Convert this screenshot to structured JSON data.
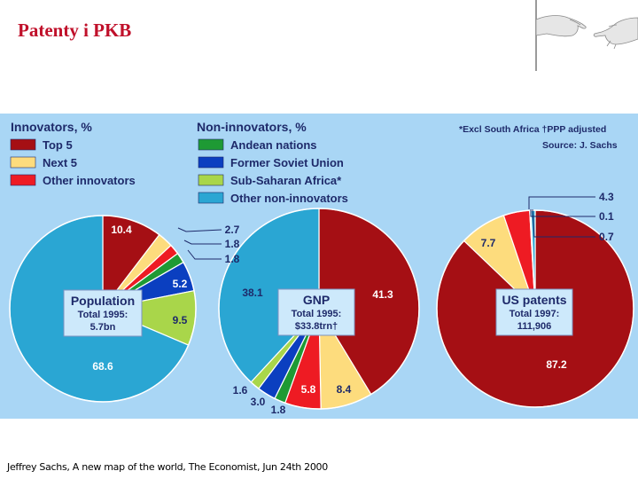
{
  "slide": {
    "title": "Patenty i PKB",
    "caption": "Jeffrey Sachs, A new map of the world, The Economist, Jun 24th 2000"
  },
  "colors": {
    "top5": "#a50f14",
    "next5": "#fddc7d",
    "other_innovators": "#ee1b23",
    "andean": "#1e9a34",
    "soviet": "#0b3fc0",
    "subsaharan": "#a9d64a",
    "other_non": "#2aa6d3",
    "background": "#a9d6f5",
    "text": "#1e2a6a"
  },
  "chart_data": {
    "type": "pie",
    "legend": {
      "innovators_title": "Innovators, %",
      "innovators": [
        {
          "key": "top5",
          "label": "Top 5"
        },
        {
          "key": "next5",
          "label": "Next 5"
        },
        {
          "key": "other_innovators",
          "label": "Other innovators"
        }
      ],
      "non_innovators_title": "Non-innovators, %",
      "non_innovators": [
        {
          "key": "andean",
          "label": "Andean nations"
        },
        {
          "key": "soviet",
          "label": "Former Soviet Union"
        },
        {
          "key": "subsaharan",
          "label": "Sub-Saharan Africa*"
        },
        {
          "key": "other_non",
          "label": "Other non-innovators"
        }
      ]
    },
    "notes": {
      "line1": "*Excl South Africa  †PPP adjusted",
      "line2": "Source: J. Sachs"
    },
    "pies": [
      {
        "name": "population",
        "box": {
          "title": "Population",
          "line1": "Total 1995:",
          "line2": "5.7bn"
        },
        "slices": [
          {
            "key": "top5",
            "value": 10.4,
            "label": "10.4"
          },
          {
            "key": "next5",
            "value": 2.7,
            "label": "2.7"
          },
          {
            "key": "other_innovators",
            "value": 1.8,
            "label": "1.8"
          },
          {
            "key": "andean",
            "value": 1.8,
            "label": "1.8"
          },
          {
            "key": "soviet",
            "value": 5.2,
            "label": "5.2"
          },
          {
            "key": "subsaharan",
            "value": 9.5,
            "label": "9.5"
          },
          {
            "key": "other_non",
            "value": 68.6,
            "label": "68.6"
          }
        ]
      },
      {
        "name": "gnp",
        "box": {
          "title": "GNP",
          "line1": "Total 1995:",
          "line2": "$33.8trn†"
        },
        "slices": [
          {
            "key": "top5",
            "value": 41.3,
            "label": "41.3"
          },
          {
            "key": "next5",
            "value": 8.4,
            "label": "8.4"
          },
          {
            "key": "other_innovators",
            "value": 5.8,
            "label": "5.8"
          },
          {
            "key": "andean",
            "value": 1.8,
            "label": "1.8"
          },
          {
            "key": "soviet",
            "value": 3.0,
            "label": "3.0"
          },
          {
            "key": "subsaharan",
            "value": 1.6,
            "label": "1.6"
          },
          {
            "key": "other_non",
            "value": 38.1,
            "label": "38.1"
          }
        ]
      },
      {
        "name": "us_patents",
        "box": {
          "title": "US patents",
          "line1": "Total 1997:",
          "line2": "111,906"
        },
        "slices": [
          {
            "key": "top5",
            "value": 87.2,
            "label": "87.2"
          },
          {
            "key": "next5",
            "value": 7.7,
            "label": "7.7"
          },
          {
            "key": "other_innovators",
            "value": 4.3,
            "label": "4.3"
          },
          {
            "key": "andean",
            "value": 0.1,
            "label": ""
          },
          {
            "key": "soviet",
            "value": 0.1,
            "label": "0.1"
          },
          {
            "key": "subsaharan",
            "value": 0.0,
            "label": ""
          },
          {
            "key": "other_non",
            "value": 0.7,
            "label": "0.7"
          }
        ]
      }
    ]
  }
}
